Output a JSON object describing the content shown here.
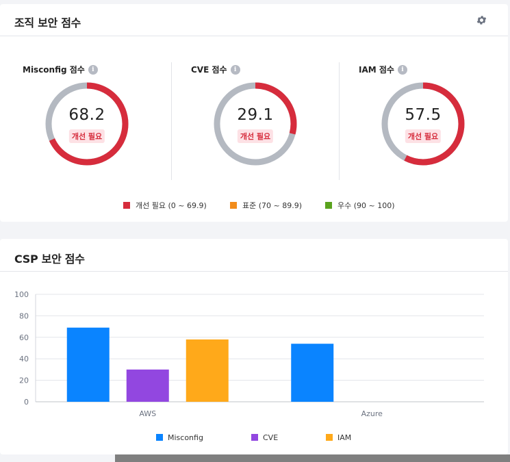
{
  "org_card": {
    "title": "조직 보안 점수",
    "settings_icon": "gear-icon",
    "scores": [
      {
        "label": "Misconfig 점수",
        "value": "68.2",
        "fraction": 0.682,
        "badge": "개선 필요",
        "info_icon": "i"
      },
      {
        "label": "CVE 점수",
        "value": "29.1",
        "fraction": 0.291,
        "badge": "개선 필요",
        "info_icon": "i"
      },
      {
        "label": "IAM 점수",
        "value": "57.5",
        "fraction": 0.575,
        "badge": "개선 필요",
        "info_icon": "i"
      }
    ],
    "legend": [
      {
        "label": "개선 필요 (0 ~ 69.9)",
        "color": "#d62c3c"
      },
      {
        "label": "표준 (70 ~ 89.9)",
        "color": "#f28c1b"
      },
      {
        "label": "우수 (90 ~ 100)",
        "color": "#5aa31e"
      }
    ],
    "colors": {
      "needs_improvement": "#d62c3c",
      "track": "#b4b9c1"
    }
  },
  "csp_card": {
    "title": "CSP 보안 점수"
  },
  "chart_data": {
    "type": "bar",
    "categories": [
      "AWS",
      "Azure"
    ],
    "series": [
      {
        "name": "Misconfig",
        "values": [
          69,
          54
        ],
        "color": "#0a84ff"
      },
      {
        "name": "CVE",
        "values": [
          30,
          null
        ],
        "color": "#9247e0"
      },
      {
        "name": "IAM",
        "values": [
          58,
          null
        ],
        "color": "#ffa91a"
      }
    ],
    "yticks": [
      "100",
      "80",
      "60",
      "40",
      "20",
      "0"
    ],
    "ylim": [
      0,
      100
    ],
    "grid": true,
    "legend_position": "bottom"
  }
}
